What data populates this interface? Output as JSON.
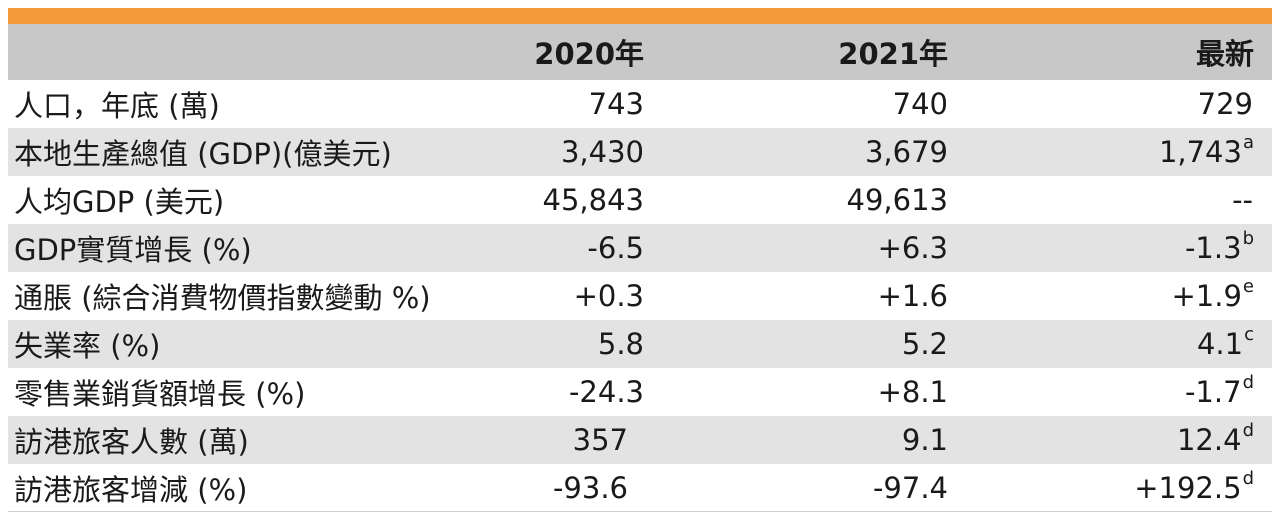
{
  "colors": {
    "accent_bar": "#f39a3a",
    "header_bg": "#c8c8c8",
    "stripe_bg": "#e3e3e3",
    "plain_bg": "#ffffff"
  },
  "header": {
    "label": "",
    "col_2020": "2020年",
    "col_2021": "2021年",
    "col_latest": "最新"
  },
  "rows": [
    {
      "label": "人口，年底 (萬)",
      "v2020": "743",
      "v2021": "740",
      "latest": "729",
      "note": ""
    },
    {
      "label": "本地生產總值 (GDP)(億美元)",
      "v2020": "3,430",
      "v2021": "3,679",
      "latest": "1,743",
      "note": "a"
    },
    {
      "label": "人均GDP (美元)",
      "v2020": "45,843",
      "v2021": "49,613",
      "latest": "--",
      "note": ""
    },
    {
      "label": "GDP實質增長 (%)",
      "v2020": "-6.5",
      "v2021": "+6.3",
      "latest": "-1.3",
      "note": "b"
    },
    {
      "label": "通脹 (綜合消費物價指數變動 %)",
      "v2020": "+0.3",
      "v2021": "+1.6",
      "latest": "+1.9",
      "note": "e"
    },
    {
      "label": "失業率 (%)",
      "v2020": "5.8",
      "v2021": "5.2",
      "latest": "4.1",
      "note": "c"
    },
    {
      "label": "零售業銷貨額增長 (%)",
      "v2020": "-24.3",
      "v2021": "+8.1",
      "latest": "-1.7",
      "note": "d"
    },
    {
      "label": "訪港旅客人數 (萬)",
      "v2020": "357",
      "v2021": "9.1",
      "latest": "12.4",
      "note": "d"
    },
    {
      "label": "訪港旅客增減 (%)",
      "v2020": "-93.6",
      "v2021": "-97.4",
      "latest": "+192.5",
      "note": "d"
    }
  ]
}
